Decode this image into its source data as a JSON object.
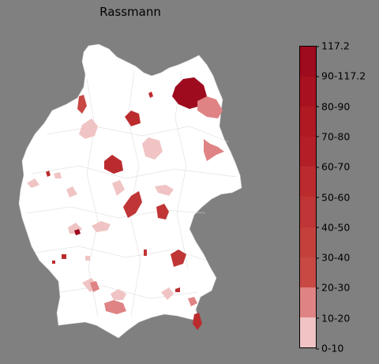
{
  "title": "Rassmann",
  "legend": {
    "labels": [
      "117.2",
      "90-117.2",
      "80-90",
      "70-80",
      "60-70",
      "50-60",
      "40-50",
      "30-40",
      "20-30",
      "10-20",
      "0-10"
    ],
    "colors": [
      "#9e0a1e",
      "#a8111f",
      "#b01822",
      "#b41f27",
      "#bb2b2e",
      "#c03535",
      "#c4403b",
      "#c84844",
      "#df8384",
      "#f0c4c4",
      "#ffffff"
    ]
  },
  "colors": {
    "background": "#808080",
    "land": "#ffffff",
    "border": "#bdbdbd"
  }
}
